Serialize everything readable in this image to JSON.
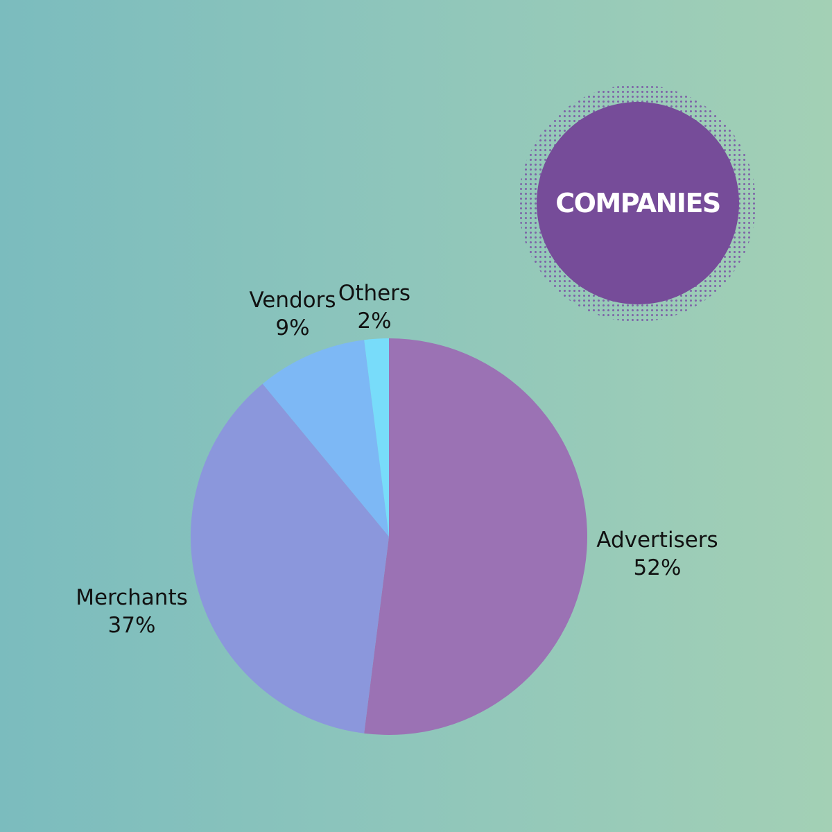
{
  "badge": {
    "text": "COMPANIES"
  },
  "colors": {
    "badge_fill": "#764c99",
    "badge_text": "#ffffff",
    "label_text": "#111111"
  },
  "chart_data": {
    "type": "pie",
    "title": "",
    "slices": [
      {
        "label": "Advertisers",
        "value": 52,
        "display": "52%",
        "color": "#9b72b4"
      },
      {
        "label": "Merchants",
        "value": 37,
        "display": "37%",
        "color": "#8b97dc"
      },
      {
        "label": "Vendors",
        "value": 9,
        "display": "9%",
        "color": "#7db8f5"
      },
      {
        "label": "Others",
        "value": 2,
        "display": "2%",
        "color": "#78dcfa"
      }
    ],
    "start_angle": "12 o'clock",
    "direction": "clockwise",
    "legend": "none",
    "data_labels": "outside"
  }
}
